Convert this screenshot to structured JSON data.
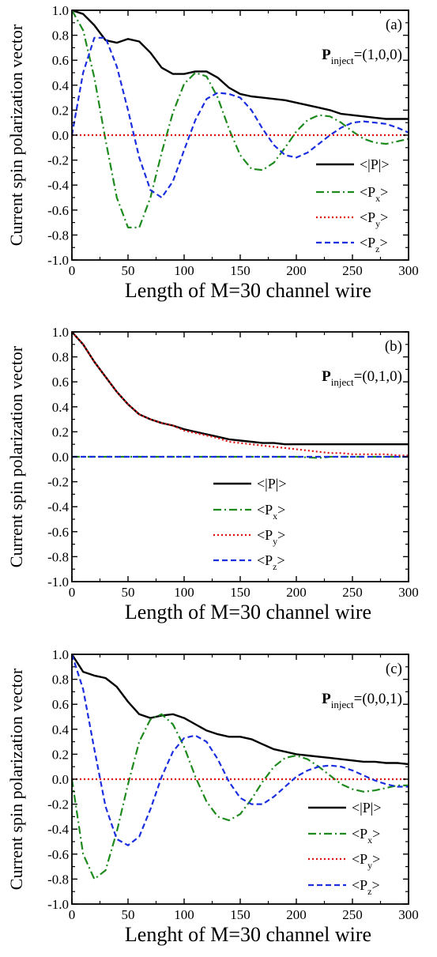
{
  "figure": {
    "ylabel": "Current spin polarization vector"
  },
  "chart_data": [
    {
      "type": "line",
      "panel_label": "(a)",
      "annotation": {
        "symbol": "P",
        "subscript": "inject",
        "value": "=(1,0,0)"
      },
      "xlabel": "Length of M=30 channel wire",
      "ylabel": "Current spin polarization vector",
      "xlim": [
        0,
        300
      ],
      "ylim": [
        -1.0,
        1.0
      ],
      "xticks": [
        "0",
        "50",
        "100",
        "150",
        "200",
        "250",
        "300"
      ],
      "yticks": [
        "-1.0",
        "-0.8",
        "-0.6",
        "-0.4",
        "-0.2",
        "0.0",
        "0.2",
        "0.4",
        "0.6",
        "0.8",
        "1.0"
      ],
      "legend_position": "right",
      "series": [
        {
          "name": "<|P|>",
          "style": "solid",
          "color": "#000000",
          "x": [
            0,
            10,
            20,
            30,
            40,
            50,
            60,
            70,
            80,
            90,
            100,
            110,
            120,
            130,
            140,
            150,
            160,
            170,
            180,
            190,
            200,
            210,
            220,
            230,
            240,
            250,
            260,
            270,
            280,
            290,
            300
          ],
          "y": [
            1.0,
            0.97,
            0.88,
            0.76,
            0.74,
            0.77,
            0.75,
            0.66,
            0.54,
            0.49,
            0.49,
            0.51,
            0.51,
            0.46,
            0.38,
            0.33,
            0.31,
            0.3,
            0.29,
            0.28,
            0.26,
            0.24,
            0.22,
            0.2,
            0.17,
            0.16,
            0.15,
            0.14,
            0.13,
            0.13,
            0.13
          ]
        },
        {
          "name": "<P<sub>x</sub>>",
          "style": "dashdot",
          "color": "#1e8a1e",
          "x": [
            0,
            10,
            20,
            30,
            40,
            50,
            60,
            70,
            80,
            90,
            100,
            110,
            120,
            130,
            140,
            150,
            160,
            170,
            180,
            190,
            200,
            210,
            220,
            230,
            240,
            250,
            260,
            270,
            280,
            290,
            300
          ],
          "y": [
            1.0,
            0.84,
            0.46,
            -0.04,
            -0.5,
            -0.74,
            -0.74,
            -0.5,
            -0.14,
            0.18,
            0.41,
            0.5,
            0.47,
            0.3,
            0.05,
            -0.16,
            -0.27,
            -0.28,
            -0.22,
            -0.1,
            0.03,
            0.12,
            0.16,
            0.15,
            0.1,
            0.03,
            -0.03,
            -0.06,
            -0.07,
            -0.05,
            -0.03
          ]
        },
        {
          "name": "<P<sub>y</sub>>",
          "style": "dotted",
          "color": "#e01010",
          "x": [
            0,
            50,
            100,
            150,
            200,
            250,
            300
          ],
          "y": [
            0,
            0,
            0,
            0,
            0,
            0,
            0
          ]
        },
        {
          "name": "<P<sub>z</sub>>",
          "style": "dashed",
          "color": "#1a2ee0",
          "x": [
            0,
            10,
            20,
            30,
            40,
            50,
            60,
            70,
            80,
            90,
            100,
            110,
            120,
            130,
            140,
            150,
            160,
            170,
            180,
            190,
            200,
            210,
            220,
            230,
            240,
            250,
            260,
            270,
            280,
            290,
            300
          ],
          "y": [
            0.0,
            0.5,
            0.78,
            0.78,
            0.55,
            0.2,
            -0.18,
            -0.44,
            -0.5,
            -0.37,
            -0.12,
            0.12,
            0.29,
            0.34,
            0.33,
            0.3,
            0.2,
            0.05,
            -0.08,
            -0.16,
            -0.18,
            -0.14,
            -0.07,
            0.0,
            0.06,
            0.1,
            0.11,
            0.1,
            0.09,
            0.06,
            0.02
          ]
        }
      ]
    },
    {
      "type": "line",
      "panel_label": "(b)",
      "annotation": {
        "symbol": "P",
        "subscript": "inject",
        "value": "=(0,1,0)"
      },
      "xlabel": "Length of M=30 channel wire",
      "ylabel": "Current spin polarization vector",
      "xlim": [
        0,
        300
      ],
      "ylim": [
        -1.0,
        1.0
      ],
      "xticks": [
        "0",
        "50",
        "100",
        "150",
        "200",
        "250",
        "300"
      ],
      "yticks": [
        "-1.0",
        "-0.8",
        "-0.6",
        "-0.4",
        "-0.2",
        "0.0",
        "0.2",
        "0.4",
        "0.6",
        "0.8",
        "1.0"
      ],
      "legend_position": "center",
      "series": [
        {
          "name": "<|P|>",
          "style": "solid",
          "color": "#000000",
          "x": [
            0,
            10,
            20,
            30,
            40,
            50,
            60,
            70,
            80,
            90,
            100,
            110,
            120,
            130,
            140,
            150,
            160,
            170,
            180,
            190,
            200,
            210,
            220,
            230,
            240,
            250,
            260,
            270,
            280,
            290,
            300
          ],
          "y": [
            1.0,
            0.9,
            0.76,
            0.64,
            0.52,
            0.42,
            0.34,
            0.3,
            0.27,
            0.25,
            0.22,
            0.2,
            0.18,
            0.16,
            0.14,
            0.13,
            0.12,
            0.11,
            0.11,
            0.1,
            0.1,
            0.1,
            0.1,
            0.1,
            0.1,
            0.1,
            0.1,
            0.1,
            0.1,
            0.1,
            0.1
          ]
        },
        {
          "name": "<P<sub>x</sub>>",
          "style": "dashdot",
          "color": "#1e8a1e",
          "x": [
            0,
            50,
            100,
            150,
            200,
            220,
            230,
            250,
            300
          ],
          "y": [
            0,
            0,
            0,
            0,
            0,
            -0.01,
            0.0,
            0.0,
            0.0
          ]
        },
        {
          "name": "<P<sub>y</sub>>",
          "style": "dotted",
          "color": "#e01010",
          "x": [
            0,
            10,
            20,
            30,
            40,
            50,
            60,
            70,
            80,
            90,
            100,
            110,
            120,
            130,
            140,
            150,
            160,
            170,
            180,
            190,
            200,
            210,
            220,
            230,
            240,
            250,
            260,
            270,
            280,
            290,
            300
          ],
          "y": [
            1.0,
            0.9,
            0.76,
            0.64,
            0.52,
            0.42,
            0.34,
            0.3,
            0.27,
            0.25,
            0.21,
            0.19,
            0.17,
            0.15,
            0.12,
            0.11,
            0.1,
            0.09,
            0.08,
            0.07,
            0.06,
            0.05,
            0.04,
            0.03,
            0.03,
            0.02,
            0.02,
            0.02,
            0.02,
            0.01,
            0.01
          ]
        },
        {
          "name": "<P<sub>z</sub>>",
          "style": "dashed",
          "color": "#1a2ee0",
          "x": [
            0,
            50,
            100,
            150,
            200,
            250,
            300
          ],
          "y": [
            0,
            0,
            0,
            0,
            0,
            0,
            0
          ]
        }
      ]
    },
    {
      "type": "line",
      "panel_label": "(c)",
      "annotation": {
        "symbol": "P",
        "subscript": "inject",
        "value": "=(0,0,1)"
      },
      "xlabel": "Lenght of M=30 channel wire",
      "ylabel": "Current spin polarization vector",
      "xlim": [
        0,
        300
      ],
      "ylim": [
        -1.0,
        1.0
      ],
      "xticks": [
        "0",
        "50",
        "100",
        "150",
        "200",
        "250",
        "300"
      ],
      "yticks": [
        "-1.0",
        "-0.8",
        "-0.6",
        "-0.4",
        "-0.2",
        "0.0",
        "0.2",
        "0.4",
        "0.6",
        "0.8",
        "1.0"
      ],
      "legend_position": "right",
      "series": [
        {
          "name": "<|P|>",
          "style": "solid",
          "color": "#000000",
          "x": [
            0,
            10,
            20,
            30,
            40,
            50,
            60,
            70,
            80,
            90,
            100,
            110,
            120,
            130,
            140,
            150,
            160,
            170,
            180,
            190,
            200,
            210,
            220,
            230,
            240,
            250,
            260,
            270,
            280,
            290,
            300
          ],
          "y": [
            1.0,
            0.86,
            0.83,
            0.81,
            0.74,
            0.62,
            0.52,
            0.49,
            0.51,
            0.52,
            0.49,
            0.44,
            0.39,
            0.36,
            0.34,
            0.34,
            0.32,
            0.28,
            0.24,
            0.22,
            0.2,
            0.19,
            0.18,
            0.17,
            0.16,
            0.15,
            0.14,
            0.14,
            0.13,
            0.13,
            0.12
          ]
        },
        {
          "name": "<P<sub>x</sub>>",
          "style": "dashdot",
          "color": "#1e8a1e",
          "x": [
            0,
            10,
            20,
            30,
            40,
            50,
            60,
            70,
            80,
            90,
            100,
            110,
            120,
            130,
            140,
            150,
            160,
            170,
            180,
            190,
            200,
            210,
            220,
            230,
            240,
            250,
            260,
            270,
            280,
            290,
            300
          ],
          "y": [
            0.0,
            -0.6,
            -0.8,
            -0.73,
            -0.42,
            -0.04,
            0.3,
            0.48,
            0.52,
            0.44,
            0.26,
            0.02,
            -0.18,
            -0.3,
            -0.33,
            -0.28,
            -0.16,
            -0.02,
            0.1,
            0.17,
            0.19,
            0.16,
            0.1,
            0.03,
            -0.04,
            -0.08,
            -0.1,
            -0.09,
            -0.07,
            -0.05,
            -0.05
          ]
        },
        {
          "name": "<P<sub>y</sub>>",
          "style": "dotted",
          "color": "#e01010",
          "x": [
            0,
            50,
            100,
            150,
            200,
            250,
            300
          ],
          "y": [
            0,
            0,
            0,
            0,
            0,
            0,
            0
          ]
        },
        {
          "name": "<P<sub>z</sub>>",
          "style": "dashed",
          "color": "#1a2ee0",
          "x": [
            0,
            10,
            20,
            30,
            40,
            50,
            60,
            70,
            80,
            90,
            100,
            110,
            120,
            130,
            140,
            150,
            160,
            170,
            180,
            190,
            200,
            210,
            220,
            230,
            240,
            250,
            260,
            270,
            280,
            290,
            300
          ],
          "y": [
            1.0,
            0.72,
            0.24,
            -0.22,
            -0.48,
            -0.53,
            -0.46,
            -0.24,
            0.02,
            0.22,
            0.33,
            0.35,
            0.3,
            0.16,
            -0.02,
            -0.15,
            -0.2,
            -0.2,
            -0.14,
            -0.06,
            0.02,
            0.07,
            0.1,
            0.11,
            0.1,
            0.07,
            0.03,
            -0.01,
            -0.04,
            -0.06,
            -0.06
          ]
        }
      ]
    }
  ]
}
